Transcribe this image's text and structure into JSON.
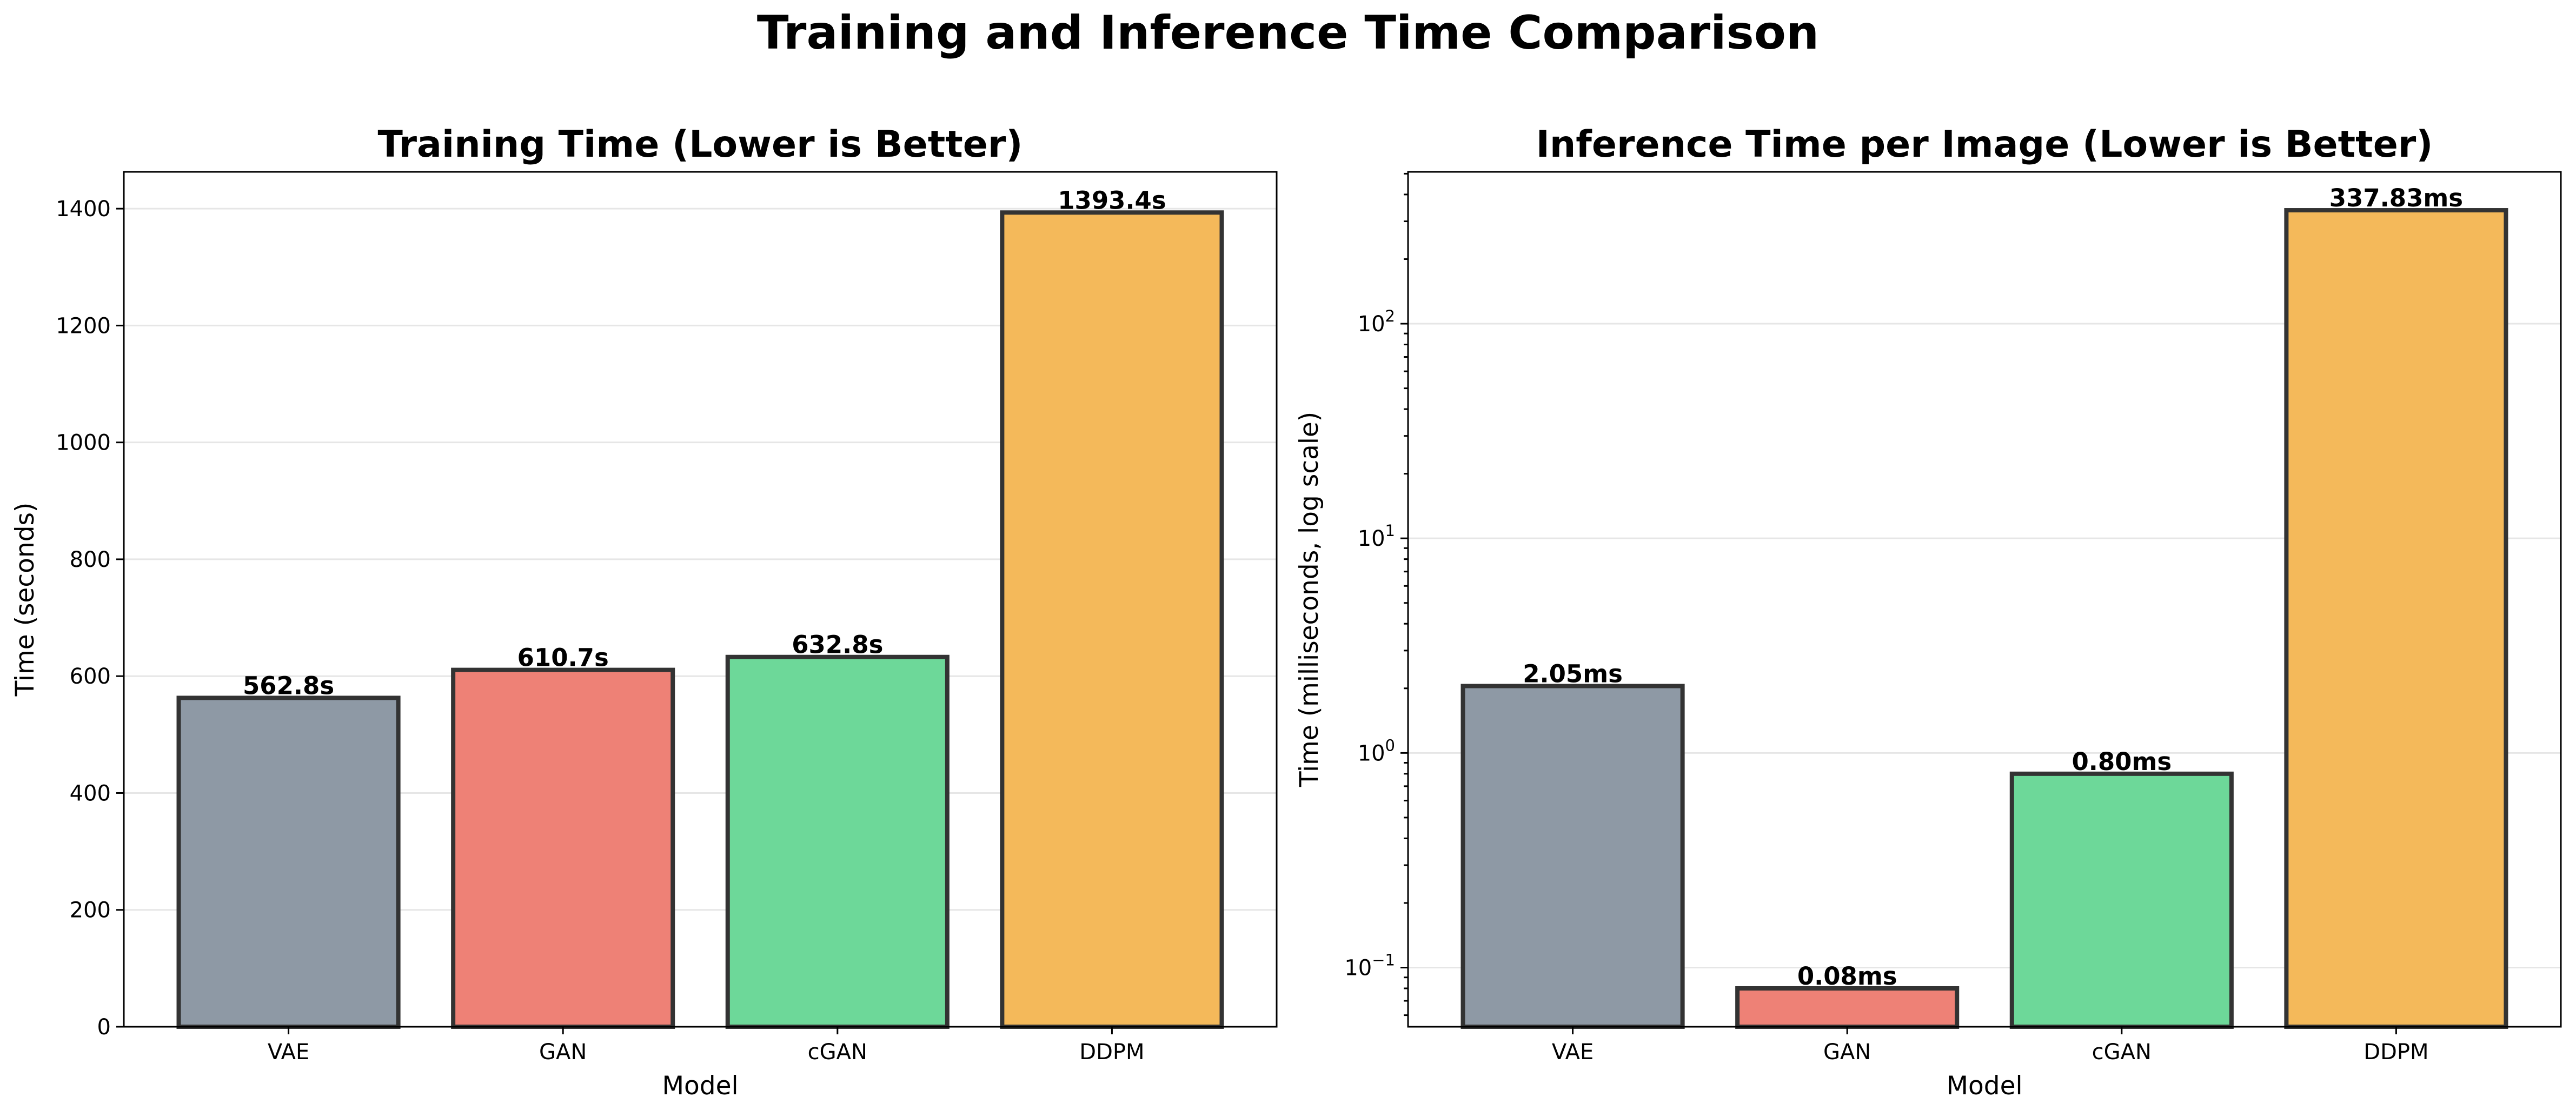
{
  "figure": {
    "title": "Training and Inference Time Comparison"
  },
  "chart_data": [
    {
      "type": "bar",
      "title": "Training Time (Lower is Better)",
      "xlabel": "Model",
      "ylabel": "Time (seconds)",
      "categories": [
        "VAE",
        "GAN",
        "cGAN",
        "DDPM"
      ],
      "values": [
        562.8,
        610.7,
        632.8,
        1393.4
      ],
      "data_labels": [
        "562.8s",
        "610.7s",
        "632.8s",
        "1393.4s"
      ],
      "colors": [
        "#8e99a5",
        "#ee8176",
        "#6dd899",
        "#f4b95a"
      ],
      "ylim": [
        0,
        1463
      ],
      "yscale": "linear",
      "yticks": [
        0,
        200,
        400,
        600,
        800,
        1000,
        1200,
        1400
      ],
      "ytick_labels": [
        "0",
        "200",
        "400",
        "600",
        "800",
        "1000",
        "1200",
        "1400"
      ],
      "grid": "y"
    },
    {
      "type": "bar",
      "title": "Inference Time per Image (Lower is Better)",
      "xlabel": "Model",
      "ylabel": "Time (milliseconds, log scale)",
      "categories": [
        "VAE",
        "GAN",
        "cGAN",
        "DDPM"
      ],
      "values": [
        2.05,
        0.08,
        0.8,
        337.83
      ],
      "data_labels": [
        "2.05ms",
        "0.08ms",
        "0.80ms",
        "337.83ms"
      ],
      "colors": [
        "#8e99a5",
        "#ee8176",
        "#6dd899",
        "#f4b95a"
      ],
      "ylim": [
        0.053,
        510
      ],
      "yscale": "log",
      "yticks": [
        0.1,
        1,
        10,
        100
      ],
      "ytick_labels": [
        [
          "10",
          "−1"
        ],
        [
          "10",
          "0"
        ],
        [
          "10",
          "1"
        ],
        [
          "10",
          "2"
        ]
      ],
      "grid": "y"
    }
  ]
}
